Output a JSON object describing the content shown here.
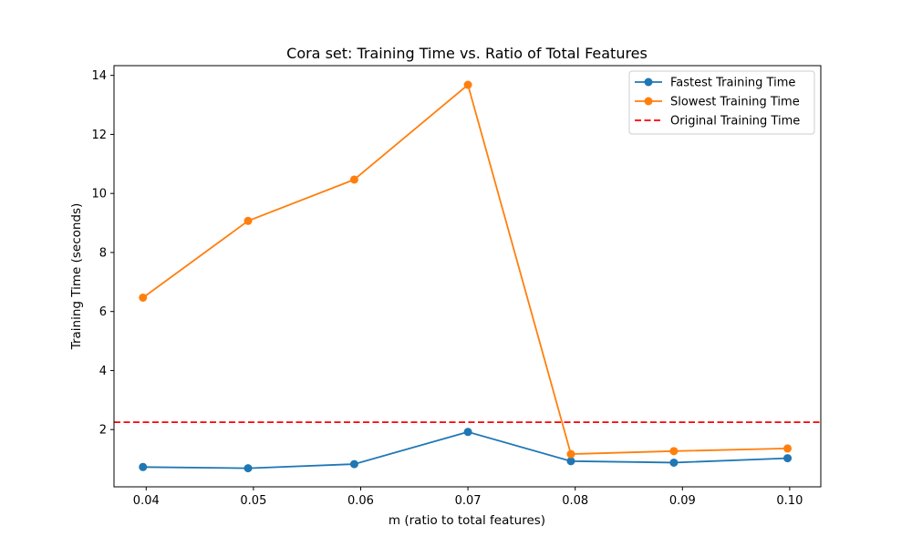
{
  "chart_data": {
    "type": "line",
    "title": "Cora set: Training Time vs. Ratio of Total Features",
    "xlabel": "m (ratio to total features)",
    "ylabel": "Training Time (seconds)",
    "x": [
      0.0397,
      0.0495,
      0.0594,
      0.07,
      0.0796,
      0.0892,
      0.0998
    ],
    "xlim": [
      0.037,
      0.1029
    ],
    "ylim": [
      0.06,
      14.33
    ],
    "xticks": [
      "0.04",
      "0.05",
      "0.06",
      "0.07",
      "0.08",
      "0.09",
      "0.10"
    ],
    "xtick_values": [
      0.04,
      0.05,
      0.06,
      0.07,
      0.08,
      0.09,
      0.1
    ],
    "yticks": [
      "2",
      "4",
      "6",
      "8",
      "10",
      "12",
      "14"
    ],
    "ytick_values": [
      2,
      4,
      6,
      8,
      10,
      12,
      14
    ],
    "grid": false,
    "legend_position": "top-right",
    "series": [
      {
        "name": "Fastest Training Time",
        "color": "#1f77b4",
        "marker": "circle",
        "values": [
          0.73,
          0.69,
          0.83,
          1.92,
          0.93,
          0.88,
          1.03
        ]
      },
      {
        "name": "Slowest Training Time",
        "color": "#ff7f0e",
        "marker": "circle",
        "values": [
          6.47,
          9.07,
          10.47,
          13.68,
          1.17,
          1.27,
          1.36
        ]
      }
    ],
    "reference_lines": [
      {
        "name": "Original Training Time",
        "color": "#ff0000",
        "style": "dashed",
        "y": 2.25
      }
    ]
  }
}
